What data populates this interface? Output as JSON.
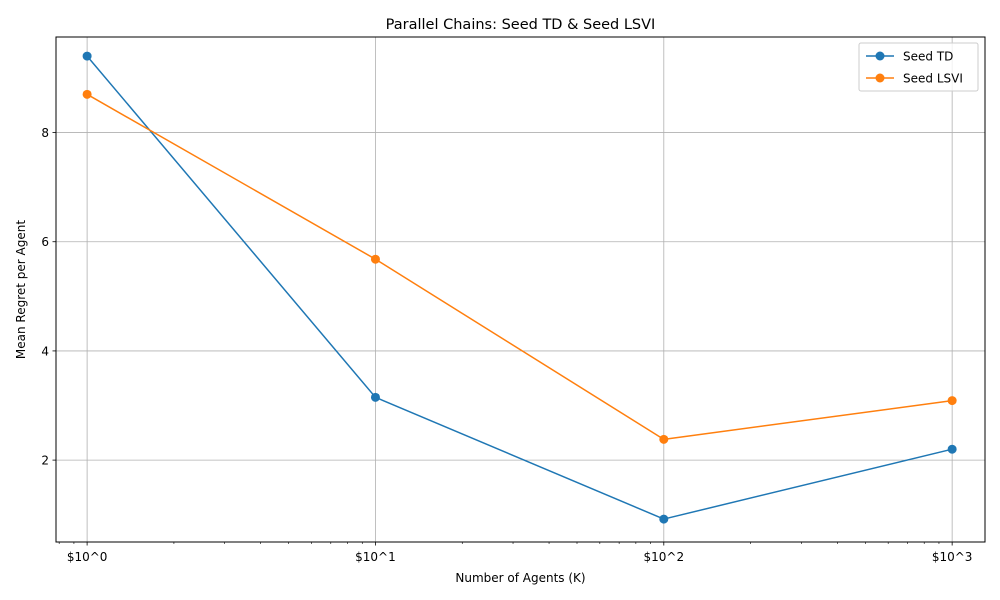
{
  "chart_data": {
    "type": "line",
    "title": "Parallel Chains: Seed TD & Seed LSVI",
    "xlabel": "Number of Agents (K)",
    "ylabel": "Mean Regret per Agent",
    "x_scale": "log",
    "x": [
      1,
      10,
      100,
      1000
    ],
    "x_tick_labels": [
      "$10^0",
      "$10^1",
      "$10^2",
      "$10^3"
    ],
    "xlim": [
      0.78,
      1300
    ],
    "y_ticks": [
      2,
      4,
      6,
      8
    ],
    "y_tick_labels": [
      "2",
      "4",
      "6",
      "8"
    ],
    "ylim": [
      0.5,
      9.75
    ],
    "grid": true,
    "legend_position": "top-right",
    "series": [
      {
        "name": "Seed TD",
        "color": "#1f77b4",
        "values": [
          9.4,
          3.15,
          0.92,
          2.2
        ]
      },
      {
        "name": "Seed LSVI",
        "color": "#ff7f0e",
        "values": [
          8.7,
          5.68,
          2.38,
          3.09
        ]
      }
    ]
  }
}
